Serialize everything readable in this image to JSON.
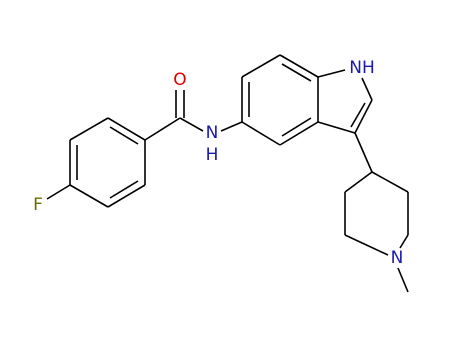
{
  "labels": {
    "fluorine": "F",
    "oxygen": "O",
    "amide_n": "N",
    "amide_h": "H",
    "indole_nh": "NH",
    "piperidine_n": "N"
  }
}
